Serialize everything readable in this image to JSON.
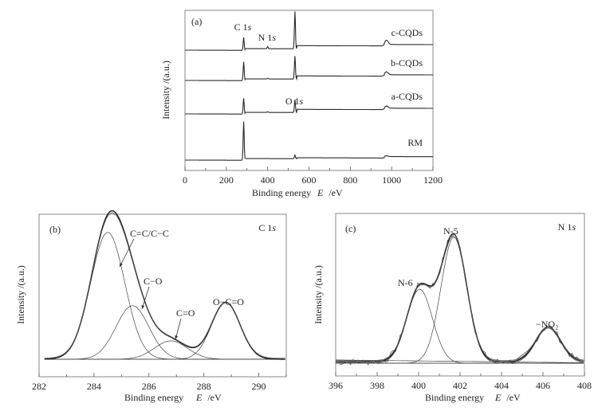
{
  "chart_data": [
    {
      "panel": "(a)",
      "type": "line",
      "title": "",
      "xlabel_main": "Binding energy",
      "xlabel_symbol": "E",
      "xlabel_unit": "/eV",
      "ylabel": "Intensity /(a.u.)",
      "xlim": [
        0,
        1200
      ],
      "xticks": [
        "0",
        "200",
        "400",
        "600",
        "800",
        "1000",
        "1200"
      ],
      "xtick_values": [
        0,
        200,
        400,
        600,
        800,
        1000,
        1200
      ],
      "y_ticks_shown": false,
      "annotations": [
        {
          "text": "C 1",
          "italic": "s",
          "x": 284
        },
        {
          "text": "N 1",
          "italic": "s",
          "x": 400
        },
        {
          "text": "O 1",
          "italic": "s",
          "x": 532
        }
      ],
      "series": [
        {
          "name": "c-CQDs",
          "offset": 3,
          "peaks": [
            {
              "x": 284,
              "h": 0.9
            },
            {
              "x": 400,
              "h": 0.15
            },
            {
              "x": 532,
              "h": 2.6
            },
            {
              "x": 975,
              "h": 0.3
            }
          ]
        },
        {
          "name": "b-CQDs",
          "offset": 2,
          "peaks": [
            {
              "x": 284,
              "h": 1.3
            },
            {
              "x": 400,
              "h": 0.05
            },
            {
              "x": 532,
              "h": 1.6
            },
            {
              "x": 975,
              "h": 0.2
            }
          ]
        },
        {
          "name": "a-CQDs",
          "offset": 1,
          "peaks": [
            {
              "x": 284,
              "h": 1.1
            },
            {
              "x": 400,
              "h": 0.05
            },
            {
              "x": 532,
              "h": 0.9
            },
            {
              "x": 975,
              "h": 0.15
            }
          ]
        },
        {
          "name": "RM",
          "offset": 0,
          "peaks": [
            {
              "x": 284,
              "h": 2.7
            },
            {
              "x": 532,
              "h": 0.25
            },
            {
              "x": 975,
              "h": 0.05
            }
          ]
        }
      ]
    },
    {
      "panel": "(b)",
      "type": "line",
      "title": "C 1s",
      "title_main": "C 1",
      "title_italic": "s",
      "xlabel_main": "Binding energy",
      "xlabel_symbol": "E",
      "xlabel_unit": "/eV",
      "ylabel": "Intensity /(a.u.)",
      "xlim": [
        282,
        291
      ],
      "xticks": [
        "282",
        "284",
        "286",
        "288",
        "290"
      ],
      "xtick_values": [
        282,
        284,
        286,
        288,
        290
      ],
      "ylim": [
        0,
        1.1
      ],
      "components": [
        {
          "name": "C=C/C−C",
          "center": 284.5,
          "height": 0.83,
          "sigma": 0.62
        },
        {
          "name": "C−O",
          "center": 285.4,
          "height": 0.35,
          "sigma": 0.6
        },
        {
          "name": "C=O",
          "center": 286.8,
          "height": 0.12,
          "sigma": 0.6
        },
        {
          "name": "O−C=O",
          "center": 288.8,
          "height": 0.37,
          "sigma": 0.52
        }
      ]
    },
    {
      "panel": "(c)",
      "type": "line",
      "title": "N 1s",
      "title_main": "N 1",
      "title_italic": "s",
      "xlabel_main": "Binding energy",
      "xlabel_symbol": "E",
      "xlabel_unit": "/eV",
      "ylabel": "Intensity /(a.u.)",
      "xlim": [
        396,
        408
      ],
      "xticks": [
        "396",
        "398",
        "400",
        "402",
        "404",
        "406",
        "408"
      ],
      "xtick_values": [
        396,
        398,
        400,
        402,
        404,
        406,
        408
      ],
      "ylim": [
        0,
        1.1
      ],
      "components": [
        {
          "name": "N-6",
          "center": 400.05,
          "height": 0.57,
          "sigma": 0.62
        },
        {
          "name": "N-5",
          "center": 401.7,
          "height": 0.97,
          "sigma": 0.62
        },
        {
          "name": "−NO₂",
          "center": 406.25,
          "height": 0.27,
          "sigma": 0.6
        }
      ]
    }
  ]
}
